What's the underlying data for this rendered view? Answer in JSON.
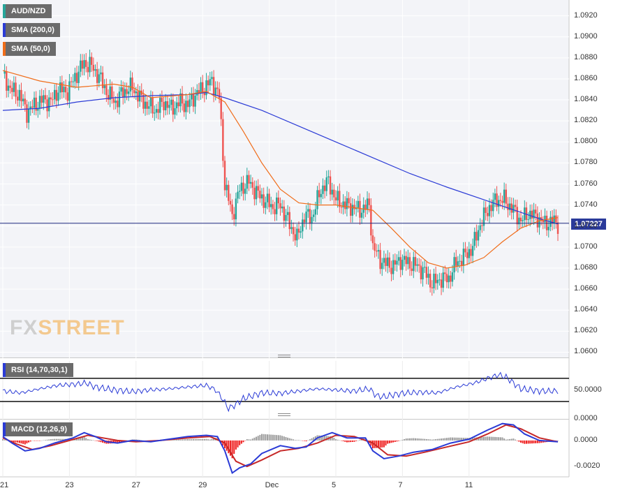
{
  "chart_data": [
    {
      "type": "candlestick",
      "pair": "AUD/NZD",
      "legend": [
        {
          "label": "AUD/NZD",
          "color": "#26a69a"
        },
        {
          "label": "SMA (200,0)",
          "color": "#2b3bd6"
        },
        {
          "label": "SMA (50,0)",
          "color": "#f06d1a"
        }
      ],
      "y_ticks": [
        "1.0920",
        "1.0900",
        "1.0880",
        "1.0860",
        "1.0840",
        "1.0820",
        "1.0800",
        "1.0780",
        "1.0760",
        "1.0740",
        "1.0720",
        "1.0700",
        "1.0680",
        "1.0660",
        "1.0640",
        "1.0620",
        "1.0600"
      ],
      "ylim": [
        1.0595,
        1.0935
      ],
      "current_price": "1.07227",
      "current_price_value": 1.07227,
      "x_ticks": [
        "21",
        "23",
        "27",
        "29",
        "Dec",
        "5",
        "7",
        "11"
      ],
      "up_color": "#26a69a",
      "down_color": "#ef5350",
      "close_path": [
        [
          0,
          1.0865
        ],
        [
          4,
          1.085
        ],
        [
          9,
          1.0845
        ],
        [
          13,
          1.0828
        ],
        [
          17,
          1.0835
        ],
        [
          22,
          1.084
        ],
        [
          26,
          1.0838
        ],
        [
          30,
          1.085
        ],
        [
          35,
          1.0848
        ],
        [
          39,
          1.0862
        ],
        [
          44,
          1.0875
        ],
        [
          48,
          1.0872
        ],
        [
          52,
          1.0862
        ],
        [
          57,
          1.0845
        ],
        [
          61,
          1.0838
        ],
        [
          65,
          1.0848
        ],
        [
          70,
          1.0852
        ],
        [
          74,
          1.0842
        ],
        [
          78,
          1.0835
        ],
        [
          83,
          1.083
        ],
        [
          87,
          1.0838
        ],
        [
          91,
          1.0832
        ],
        [
          96,
          1.0838
        ],
        [
          100,
          1.0835
        ],
        [
          104,
          1.0845
        ],
        [
          109,
          1.0852
        ],
        [
          113,
          1.0858
        ],
        [
          117,
          1.0843
        ],
        [
          120,
          1.076
        ],
        [
          124,
          1.073
        ],
        [
          128,
          1.0755
        ],
        [
          133,
          1.0762
        ],
        [
          137,
          1.0752
        ],
        [
          141,
          1.0745
        ],
        [
          146,
          1.0738
        ],
        [
          150,
          1.074
        ],
        [
          154,
          1.0725
        ],
        [
          159,
          1.0708
        ],
        [
          163,
          1.073
        ],
        [
          167,
          1.0728
        ],
        [
          172,
          1.0755
        ],
        [
          176,
          1.0762
        ],
        [
          180,
          1.0745
        ],
        [
          185,
          1.074
        ],
        [
          189,
          1.0738
        ],
        [
          193,
          1.0735
        ],
        [
          198,
          1.074
        ],
        [
          200,
          1.07
        ],
        [
          204,
          1.0688
        ],
        [
          207,
          1.0684
        ],
        [
          211,
          1.0682
        ],
        [
          215,
          1.0688
        ],
        [
          219,
          1.0685
        ],
        [
          224,
          1.0682
        ],
        [
          228,
          1.0676
        ],
        [
          232,
          1.0665
        ],
        [
          237,
          1.067
        ],
        [
          241,
          1.067
        ],
        [
          245,
          1.0685
        ],
        [
          250,
          1.0692
        ],
        [
          254,
          1.07
        ],
        [
          258,
          1.0722
        ],
        [
          263,
          1.0738
        ],
        [
          267,
          1.0745
        ],
        [
          271,
          1.0745
        ],
        [
          276,
          1.0735
        ],
        [
          280,
          1.0725
        ],
        [
          284,
          1.0732
        ],
        [
          289,
          1.0728
        ],
        [
          293,
          1.0722
        ],
        [
          297,
          1.0725
        ],
        [
          300,
          1.0722
        ]
      ],
      "sma200_path": [
        [
          0,
          1.083
        ],
        [
          20,
          1.0832
        ],
        [
          40,
          1.0838
        ],
        [
          60,
          1.0842
        ],
        [
          80,
          1.0844
        ],
        [
          100,
          1.0845
        ],
        [
          110,
          1.0847
        ],
        [
          120,
          1.0842
        ],
        [
          140,
          1.083
        ],
        [
          160,
          1.0815
        ],
        [
          180,
          1.08
        ],
        [
          200,
          1.0785
        ],
        [
          220,
          1.077
        ],
        [
          240,
          1.0757
        ],
        [
          260,
          1.0745
        ],
        [
          280,
          1.0733
        ],
        [
          290,
          1.0727
        ],
        [
          300,
          1.0722
        ]
      ],
      "sma50_path": [
        [
          0,
          1.0868
        ],
        [
          20,
          1.0858
        ],
        [
          40,
          1.0852
        ],
        [
          60,
          1.0855
        ],
        [
          70,
          1.0852
        ],
        [
          80,
          1.0842
        ],
        [
          100,
          1.0845
        ],
        [
          110,
          1.0848
        ],
        [
          120,
          1.0838
        ],
        [
          130,
          1.081
        ],
        [
          140,
          1.078
        ],
        [
          150,
          1.0755
        ],
        [
          160,
          1.0742
        ],
        [
          170,
          1.074
        ],
        [
          180,
          1.074
        ],
        [
          200,
          1.0735
        ],
        [
          210,
          1.0718
        ],
        [
          220,
          1.07
        ],
        [
          230,
          1.0685
        ],
        [
          240,
          1.068
        ],
        [
          250,
          1.0683
        ],
        [
          260,
          1.069
        ],
        [
          270,
          1.0705
        ],
        [
          280,
          1.0718
        ],
        [
          290,
          1.0725
        ],
        [
          300,
          1.0728
        ]
      ]
    },
    {
      "type": "line",
      "indicator": "RSI",
      "label": "RSI (14,70,30,1)",
      "ticks": [
        "50.0000",
        "0.0000"
      ],
      "levels": [
        70,
        30
      ],
      "ylim": [
        0,
        100
      ],
      "series_color": "#2b3bd6",
      "path": [
        [
          0,
          48
        ],
        [
          10,
          45
        ],
        [
          20,
          52
        ],
        [
          30,
          58
        ],
        [
          40,
          60
        ],
        [
          45,
          62
        ],
        [
          50,
          55
        ],
        [
          60,
          50
        ],
        [
          70,
          47
        ],
        [
          80,
          50
        ],
        [
          90,
          52
        ],
        [
          100,
          55
        ],
        [
          110,
          58
        ],
        [
          115,
          50
        ],
        [
          118,
          38
        ],
        [
          122,
          18
        ],
        [
          126,
          25
        ],
        [
          130,
          35
        ],
        [
          140,
          45
        ],
        [
          150,
          44
        ],
        [
          160,
          48
        ],
        [
          170,
          52
        ],
        [
          180,
          50
        ],
        [
          190,
          48
        ],
        [
          198,
          52
        ],
        [
          202,
          40
        ],
        [
          206,
          38
        ],
        [
          215,
          44
        ],
        [
          225,
          46
        ],
        [
          235,
          45
        ],
        [
          245,
          55
        ],
        [
          255,
          62
        ],
        [
          262,
          70
        ],
        [
          268,
          76
        ],
        [
          272,
          72
        ],
        [
          276,
          62
        ],
        [
          280,
          52
        ],
        [
          290,
          48
        ],
        [
          300,
          48
        ]
      ]
    },
    {
      "type": "bar_line",
      "indicator": "MACD",
      "label": "MACD (12,26,9)",
      "ticks": [
        "0.0000",
        "-0.0020"
      ],
      "ylim": [
        -0.0028,
        0.0015
      ],
      "macd_color": "#2b3bd6",
      "signal_color": "#c62828",
      "hist_pos_color": "#9e9e9e",
      "hist_neg_color": "#ef1f1f",
      "macd_path": [
        [
          0,
          0.0003
        ],
        [
          5,
          -0.0002
        ],
        [
          12,
          -0.0008
        ],
        [
          20,
          -0.0006
        ],
        [
          28,
          -0.0002
        ],
        [
          38,
          0.0002
        ],
        [
          44,
          0.0006
        ],
        [
          50,
          0.0003
        ],
        [
          56,
          -0.0001
        ],
        [
          62,
          -0.0002
        ],
        [
          70,
          0.0
        ],
        [
          80,
          -0.0001
        ],
        [
          90,
          0.0001
        ],
        [
          100,
          0.0003
        ],
        [
          110,
          0.0004
        ],
        [
          116,
          0.0003
        ],
        [
          120,
          -0.0008
        ],
        [
          124,
          -0.0025
        ],
        [
          128,
          -0.0021
        ],
        [
          134,
          -0.0018
        ],
        [
          140,
          -0.001
        ],
        [
          150,
          -0.0004
        ],
        [
          158,
          -0.0006
        ],
        [
          164,
          -0.0005
        ],
        [
          170,
          0.0002
        ],
        [
          178,
          0.0006
        ],
        [
          186,
          0.0002
        ],
        [
          196,
          0.0002
        ],
        [
          200,
          -0.0008
        ],
        [
          206,
          -0.0014
        ],
        [
          214,
          -0.0012
        ],
        [
          222,
          -0.0009
        ],
        [
          232,
          -0.0007
        ],
        [
          242,
          -0.0002
        ],
        [
          252,
          0.0001
        ],
        [
          262,
          0.0008
        ],
        [
          270,
          0.0013
        ],
        [
          276,
          0.0012
        ],
        [
          282,
          0.0005
        ],
        [
          290,
          0.0
        ],
        [
          300,
          -0.0001
        ]
      ],
      "signal_path": [
        [
          0,
          0.0002
        ],
        [
          8,
          -0.0003
        ],
        [
          16,
          -0.0007
        ],
        [
          26,
          -0.0004
        ],
        [
          36,
          0.0
        ],
        [
          46,
          0.0004
        ],
        [
          54,
          0.0002
        ],
        [
          62,
          0.0
        ],
        [
          72,
          -0.0001
        ],
        [
          85,
          0.0
        ],
        [
          100,
          0.0002
        ],
        [
          112,
          0.0003
        ],
        [
          120,
          -0.0002
        ],
        [
          126,
          -0.0016
        ],
        [
          132,
          -0.002
        ],
        [
          140,
          -0.0015
        ],
        [
          150,
          -0.0008
        ],
        [
          160,
          -0.0006
        ],
        [
          170,
          -0.0002
        ],
        [
          180,
          0.0004
        ],
        [
          190,
          0.0003
        ],
        [
          200,
          -0.0002
        ],
        [
          208,
          -0.0011
        ],
        [
          218,
          -0.0012
        ],
        [
          228,
          -0.0009
        ],
        [
          240,
          -0.0005
        ],
        [
          252,
          -0.0001
        ],
        [
          262,
          0.0005
        ],
        [
          272,
          0.0012
        ],
        [
          280,
          0.0009
        ],
        [
          290,
          0.0002
        ],
        [
          300,
          -0.0001
        ]
      ]
    }
  ]
}
